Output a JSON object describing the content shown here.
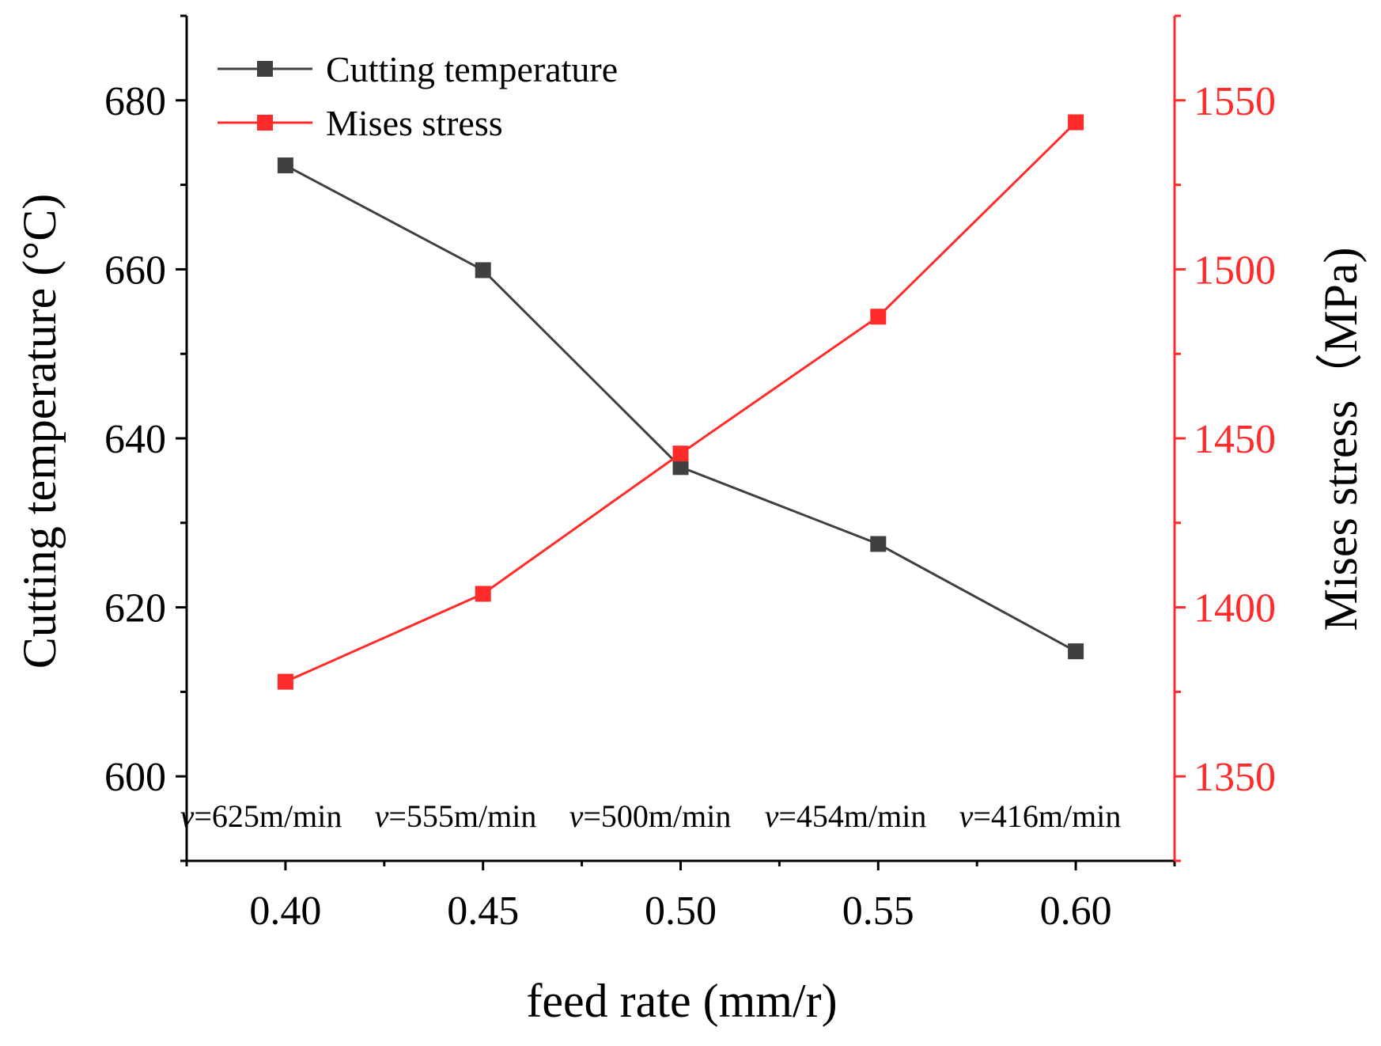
{
  "chart_data": {
    "type": "line",
    "title": "",
    "xlabel": "feed rate (mm/r)",
    "ylabel_left": "Cutting temperature (°C)",
    "ylabel_right": "Mises stress（MPa)",
    "x": [
      0.4,
      0.45,
      0.5,
      0.55,
      0.6
    ],
    "x_tick_labels": [
      "0.40",
      "0.45",
      "0.50",
      "0.55",
      "0.60"
    ],
    "xlim": [
      0.375,
      0.625
    ],
    "ylim_left": [
      590,
      690
    ],
    "ylim_right": [
      1325,
      1575
    ],
    "y_left_ticks": [
      600,
      620,
      640,
      660,
      680
    ],
    "y_left_tick_labels": [
      "600",
      "620",
      "640",
      "660",
      "680"
    ],
    "y_right_ticks": [
      1350,
      1400,
      1450,
      1500,
      1550
    ],
    "y_right_tick_labels": [
      "1350",
      "1400",
      "1450",
      "1500",
      "1550"
    ],
    "grid": false,
    "legend_position": "top-left",
    "series": [
      {
        "name": "Cutting temperature",
        "axis": "left",
        "color": "#404040",
        "marker": "square",
        "values": [
          672.3,
          659.9,
          636.6,
          627.5,
          614.8
        ]
      },
      {
        "name": "Mises stress",
        "axis": "right",
        "color": "#ff2a2a",
        "marker": "square",
        "values": [
          1378,
          1404,
          1445.5,
          1486,
          1543.5
        ]
      }
    ],
    "annotations": [
      {
        "italic": "v",
        "text": "=625m/min"
      },
      {
        "italic": "v",
        "text": "=555m/min"
      },
      {
        "italic": "v",
        "text": "=500m/min"
      },
      {
        "italic": "v",
        "text": "=454m/min"
      },
      {
        "italic": "v",
        "text": "=416m/min"
      }
    ],
    "colors": {
      "left_axis": "#000000",
      "right_axis": "#ff2a2a"
    }
  }
}
